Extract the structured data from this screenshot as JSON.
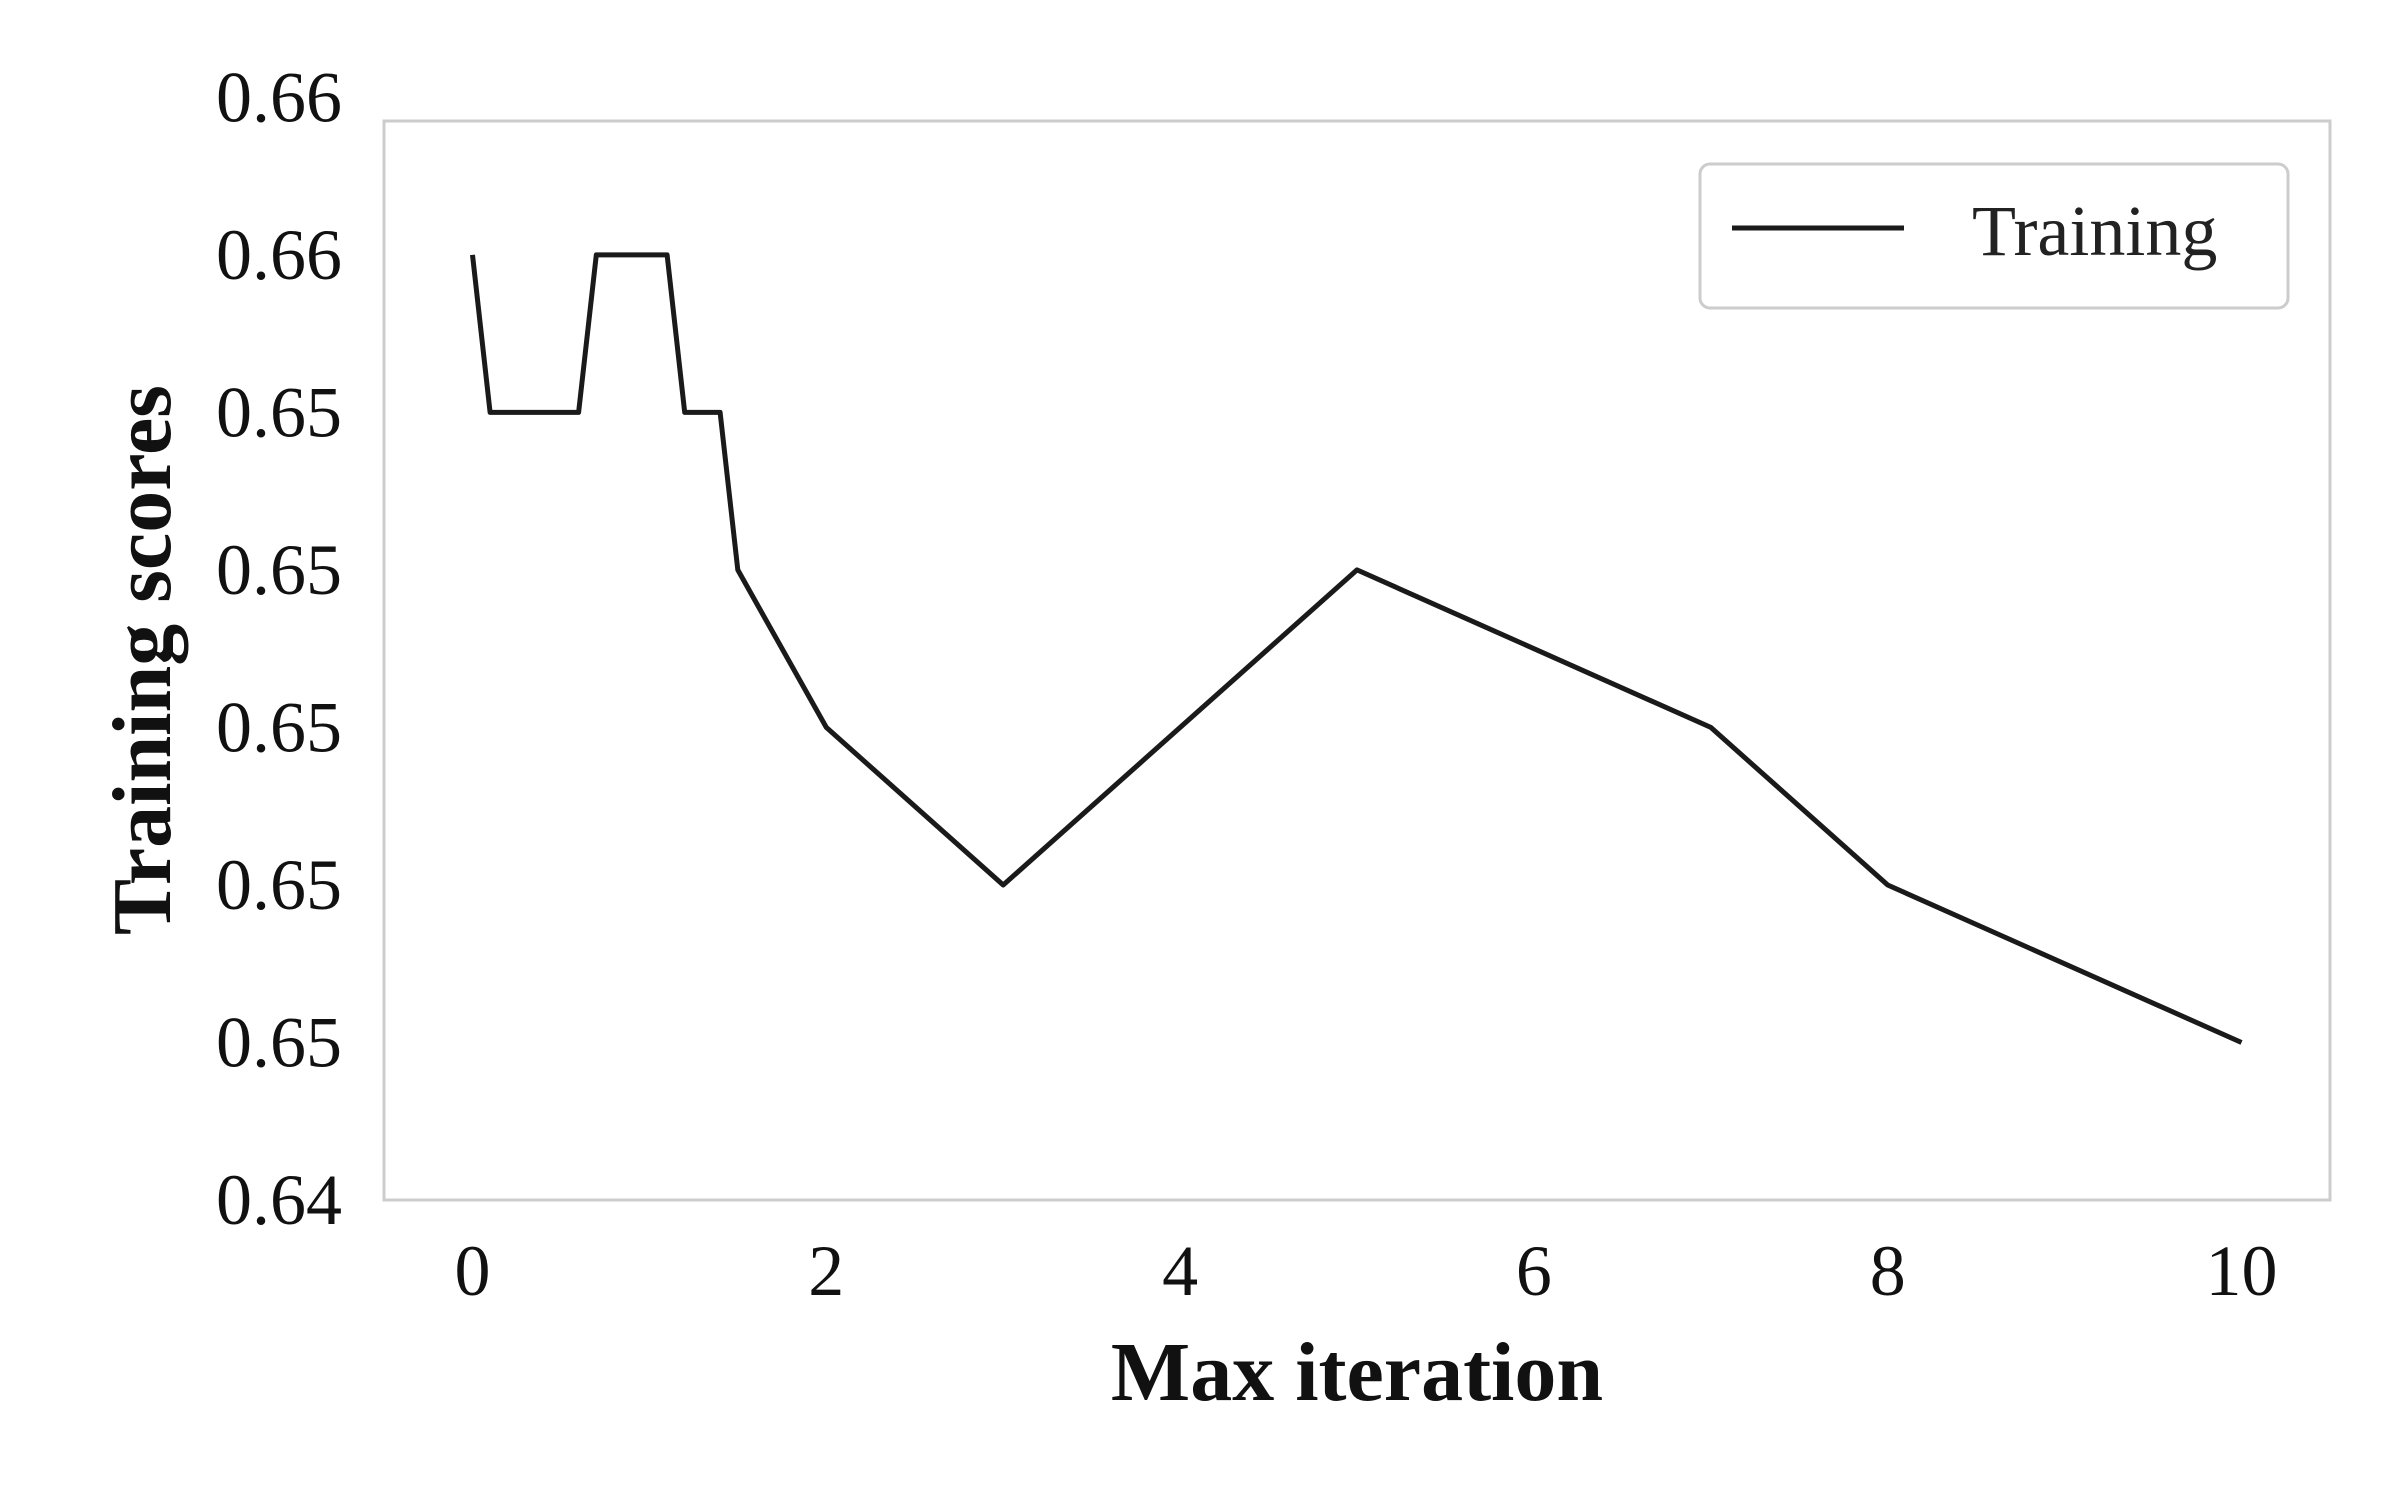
{
  "chart_data": {
    "type": "line",
    "title": "",
    "xlabel": "Max iteration",
    "ylabel": "Training scores",
    "xlim": [
      -0.5,
      10.5
    ],
    "ylim": [
      0,
      6.85
    ],
    "x_ticks": [
      0,
      2,
      4,
      6,
      8,
      10
    ],
    "x_tick_labels": [
      "0",
      "2",
      "4",
      "6",
      "8",
      "10"
    ],
    "y_ticks": [
      0,
      1,
      2,
      3,
      4,
      5,
      6,
      7
    ],
    "y_tick_labels": [
      "0.64",
      "0.65",
      "0.65",
      "0.65",
      "0.65",
      "0.65",
      "0.66",
      "0.66"
    ],
    "grid": false,
    "legend_position": "top-right",
    "series": [
      {
        "name": "Training",
        "color": "#1a1a1a",
        "x": [
          0,
          0.1,
          0.6,
          0.7,
          1.1,
          1.2,
          1.4,
          1.5,
          2,
          3,
          5,
          7,
          8,
          10
        ],
        "y": [
          6.0,
          5.0,
          5.0,
          6.0,
          6.0,
          5.0,
          5.0,
          4.0,
          3.0,
          2.0,
          4.0,
          3.0,
          2.0,
          1.0
        ]
      }
    ]
  }
}
